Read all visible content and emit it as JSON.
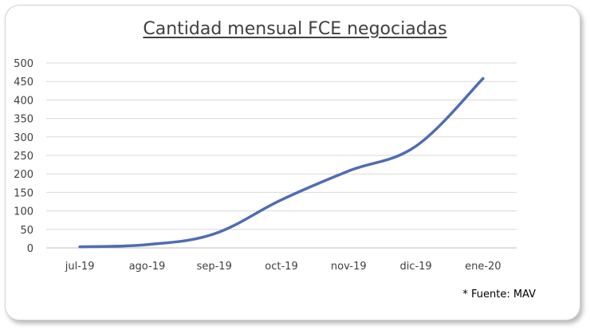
{
  "chart_data": {
    "type": "line",
    "title": "Cantidad mensual FCE negociadas",
    "categories": [
      "jul-19",
      "ago-19",
      "sep-19",
      "oct-19",
      "nov-19",
      "dic-19",
      "ene-20"
    ],
    "series": [
      {
        "values": [
          3,
          9,
          38,
          130,
          208,
          275,
          458
        ]
      }
    ],
    "ylim": [
      0,
      500
    ],
    "yticks": [
      0,
      50,
      100,
      150,
      200,
      250,
      300,
      350,
      400,
      450,
      500
    ],
    "grid": true,
    "colors": {
      "line": "#4f6db3",
      "grid": "#d9d9d9",
      "axis": "#bfbfbf"
    }
  },
  "source_note": "* Fuente: MAV"
}
